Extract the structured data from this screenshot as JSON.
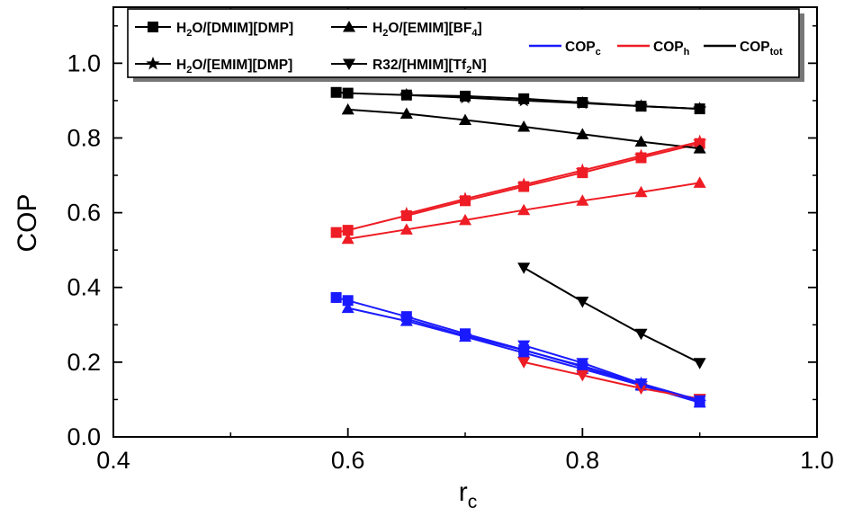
{
  "chart_data": {
    "type": "line",
    "xlabel": "r",
    "xlabel_sub": "c",
    "ylabel": "COP",
    "xlim": [
      0.4,
      1.0
    ],
    "ylim": [
      0.0,
      1.15
    ],
    "x_ticks": [
      0.4,
      0.6,
      0.8,
      1.0
    ],
    "y_ticks": [
      0.0,
      0.2,
      0.4,
      0.6,
      0.8,
      1.0
    ],
    "x_tick_labels": [
      "0.4",
      "0.6",
      "0.8",
      "1.0"
    ],
    "y_tick_labels": [
      "0.0",
      "0.2",
      "0.4",
      "0.6",
      "0.8",
      "1.0"
    ],
    "grid": false,
    "legend_placement": "top",
    "working_pairs": [
      {
        "name": "H₂O/[DMIM][DMP]",
        "label_main": "H",
        "label_sub": "2",
        "label_rest": "O/[DMIM][DMP]",
        "label_sub2": "",
        "label_end": "",
        "marker": "square"
      },
      {
        "name": "H₂O/[EMIM][BF₄]",
        "label_main": "H",
        "label_sub": "2",
        "label_rest": "O/[EMIM][BF",
        "label_sub2": "4",
        "label_end": "]",
        "marker": "triangle-up"
      },
      {
        "name": "H₂O/[EMIM][DMP]",
        "label_main": "H",
        "label_sub": "2",
        "label_rest": "O/[EMIM][DMP]",
        "label_sub2": "",
        "label_end": "",
        "marker": "star"
      },
      {
        "name": "R32/[HMIM][Tf₂N]",
        "label_main": "R32/[HMIM][Tf",
        "label_sub": "2",
        "label_rest": "N]",
        "label_sub2": "",
        "label_end": "",
        "marker": "triangle-down"
      }
    ],
    "cop_types": [
      {
        "name": "COPc",
        "label_main": "COP",
        "label_sub": "c",
        "color": "#1a1aff"
      },
      {
        "name": "COPh",
        "label_main": "COP",
        "label_sub": "h",
        "color": "#ee1c24"
      },
      {
        "name": "COPtot",
        "label_main": "COP",
        "label_sub": "tot",
        "color": "#000000"
      }
    ],
    "series": [
      {
        "pair": 0,
        "cop": "COPtot",
        "x": [
          0.59,
          0.6,
          0.65,
          0.7,
          0.75,
          0.8,
          0.85,
          0.9
        ],
        "y": [
          0.922,
          0.92,
          0.915,
          0.912,
          0.905,
          0.895,
          0.885,
          0.878
        ]
      },
      {
        "pair": 0,
        "cop": "COPh",
        "x": [
          0.59,
          0.6,
          0.65,
          0.7,
          0.75,
          0.8,
          0.85,
          0.9
        ],
        "y": [
          0.547,
          0.553,
          0.592,
          0.632,
          0.67,
          0.707,
          0.747,
          0.785
        ]
      },
      {
        "pair": 0,
        "cop": "COPc",
        "x": [
          0.59,
          0.6,
          0.65,
          0.7,
          0.75,
          0.8,
          0.85,
          0.9
        ],
        "y": [
          0.373,
          0.365,
          0.322,
          0.276,
          0.233,
          0.188,
          0.138,
          0.093
        ]
      },
      {
        "pair": 1,
        "cop": "COPtot",
        "x": [
          0.6,
          0.65,
          0.7,
          0.75,
          0.8,
          0.85,
          0.9
        ],
        "y": [
          0.876,
          0.865,
          0.848,
          0.83,
          0.81,
          0.79,
          0.772
        ]
      },
      {
        "pair": 1,
        "cop": "COPh",
        "x": [
          0.6,
          0.65,
          0.7,
          0.75,
          0.8,
          0.85,
          0.9
        ],
        "y": [
          0.53,
          0.555,
          0.58,
          0.607,
          0.632,
          0.655,
          0.68
        ]
      },
      {
        "pair": 1,
        "cop": "COPc",
        "x": [
          0.6,
          0.65,
          0.7,
          0.75,
          0.8,
          0.85,
          0.9
        ],
        "y": [
          0.345,
          0.31,
          0.268,
          0.225,
          0.182,
          0.138,
          0.092
        ]
      },
      {
        "pair": 2,
        "cop": "COPtot",
        "x": [
          0.65,
          0.7,
          0.75,
          0.8,
          0.85,
          0.9
        ],
        "y": [
          0.915,
          0.908,
          0.9,
          0.893,
          0.885,
          0.878
        ]
      },
      {
        "pair": 2,
        "cop": "COPh",
        "x": [
          0.65,
          0.7,
          0.75,
          0.8,
          0.85,
          0.9
        ],
        "y": [
          0.597,
          0.637,
          0.675,
          0.713,
          0.752,
          0.79
        ]
      },
      {
        "pair": 2,
        "cop": "COPc",
        "x": [
          0.65,
          0.7,
          0.75,
          0.8,
          0.85,
          0.9
        ],
        "y": [
          0.316,
          0.271,
          0.232,
          0.19,
          0.143,
          0.093
        ]
      },
      {
        "pair": 3,
        "cop": "COPtot",
        "x": [
          0.75,
          0.8,
          0.85,
          0.9
        ],
        "y": [
          0.453,
          0.362,
          0.276,
          0.198
        ]
      },
      {
        "pair": 3,
        "cop": "COPh",
        "x": [
          0.75,
          0.8,
          0.85,
          0.9
        ],
        "y": [
          0.2,
          0.165,
          0.13,
          0.102
        ]
      },
      {
        "pair": 3,
        "cop": "COPc",
        "x": [
          0.75,
          0.8,
          0.85,
          0.9
        ],
        "y": [
          0.245,
          0.198,
          0.143,
          0.098
        ]
      }
    ]
  }
}
